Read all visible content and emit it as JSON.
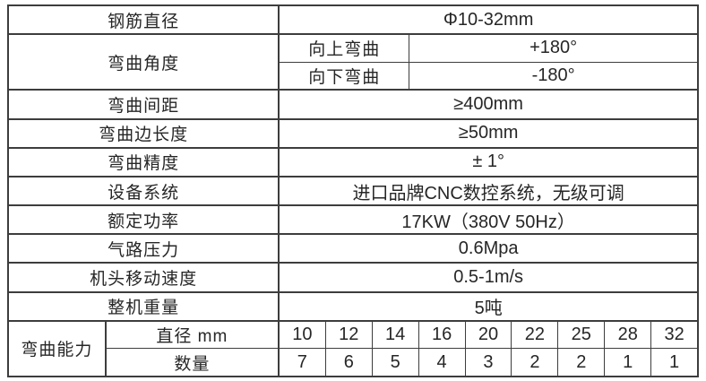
{
  "spec": {
    "rows": [
      {
        "label": "钢筋直径",
        "value": "Φ10-32mm"
      },
      {
        "label": "弯曲间距",
        "value": "≥400mm"
      },
      {
        "label": "弯曲边长度",
        "value": "≥50mm"
      },
      {
        "label": "弯曲精度",
        "value": "± 1°"
      },
      {
        "label": "设备系统",
        "value": "进口品牌CNC数控系统，无级可调"
      },
      {
        "label": "额定功率",
        "value": "17KW（380V 50Hz）"
      },
      {
        "label": "气路压力",
        "value": "0.6Mpa"
      },
      {
        "label": "机头移动速度",
        "value": "0.5-1m/s"
      },
      {
        "label": "整机重量",
        "value": "5吨"
      }
    ],
    "bend_angle": {
      "label": "弯曲角度",
      "up": {
        "label": "向上弯曲",
        "value": "+180°"
      },
      "down": {
        "label": "向下弯曲",
        "value": "-180°"
      }
    },
    "capacity": {
      "label": "弯曲能力",
      "diameter_label": "直径 mm",
      "quantity_label": "数量",
      "diameters": [
        "10",
        "12",
        "14",
        "16",
        "20",
        "22",
        "25",
        "28",
        "32"
      ],
      "quantities": [
        "7",
        "6",
        "5",
        "4",
        "3",
        "2",
        "2",
        "1",
        "1"
      ]
    },
    "colors": {
      "border": "#3d3d3d",
      "text": "#262626",
      "background": "#ffffff"
    }
  }
}
